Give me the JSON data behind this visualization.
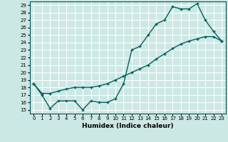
{
  "xlabel": "Humidex (Indice chaleur)",
  "ylabel": "",
  "bg_color": "#cce8e4",
  "grid_color": "#ffffff",
  "line_color": "#006060",
  "xlim": [
    -0.5,
    23.5
  ],
  "ylim": [
    14.5,
    29.5
  ],
  "xticks": [
    0,
    1,
    2,
    3,
    4,
    5,
    6,
    7,
    8,
    9,
    10,
    11,
    12,
    13,
    14,
    15,
    16,
    17,
    18,
    19,
    20,
    21,
    22,
    23
  ],
  "yticks": [
    15,
    16,
    17,
    18,
    19,
    20,
    21,
    22,
    23,
    24,
    25,
    26,
    27,
    28,
    29
  ],
  "line1_x": [
    0,
    1,
    2,
    3,
    4,
    5,
    6,
    7,
    8,
    9,
    10,
    11,
    12,
    13,
    14,
    15,
    16,
    17,
    18,
    19,
    20,
    21,
    22,
    23
  ],
  "line1_y": [
    18.5,
    17.0,
    15.2,
    16.2,
    16.2,
    16.2,
    15.0,
    16.2,
    16.0,
    16.0,
    16.5,
    18.5,
    23.0,
    23.5,
    25.0,
    26.5,
    27.0,
    28.8,
    28.5,
    28.5,
    29.2,
    27.0,
    25.5,
    24.2
  ],
  "line2_x": [
    0,
    1,
    2,
    3,
    4,
    5,
    6,
    7,
    8,
    9,
    10,
    11,
    12,
    13,
    14,
    15,
    16,
    17,
    18,
    19,
    20,
    21,
    22,
    23
  ],
  "line2_y": [
    18.5,
    17.2,
    17.2,
    17.5,
    17.8,
    18.0,
    18.0,
    18.0,
    18.2,
    18.5,
    19.0,
    19.5,
    20.0,
    20.5,
    21.0,
    21.8,
    22.5,
    23.2,
    23.8,
    24.2,
    24.5,
    24.8,
    24.8,
    24.2
  ]
}
